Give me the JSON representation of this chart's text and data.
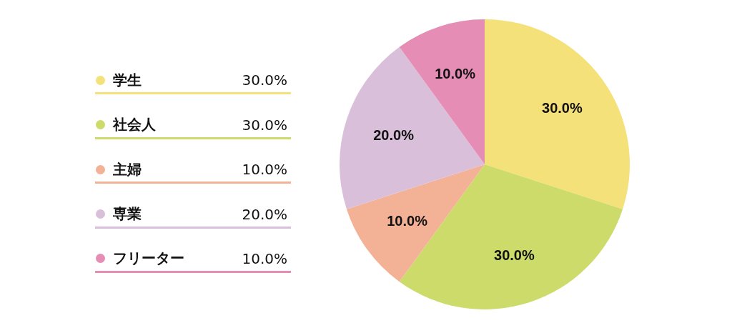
{
  "chart_data": {
    "type": "pie",
    "categories": [
      "学生",
      "社会人",
      "主婦",
      "専業",
      "フリーター"
    ],
    "values": [
      30,
      30,
      10,
      20,
      10
    ],
    "colors": [
      "#f5e17a",
      "#cddb6a",
      "#f3b196",
      "#d9bfda",
      "#e58db5"
    ],
    "value_labels": [
      "30.0%",
      "30.0%",
      "10.0%",
      "20.0%",
      "10.0%"
    ],
    "legend": "left"
  }
}
